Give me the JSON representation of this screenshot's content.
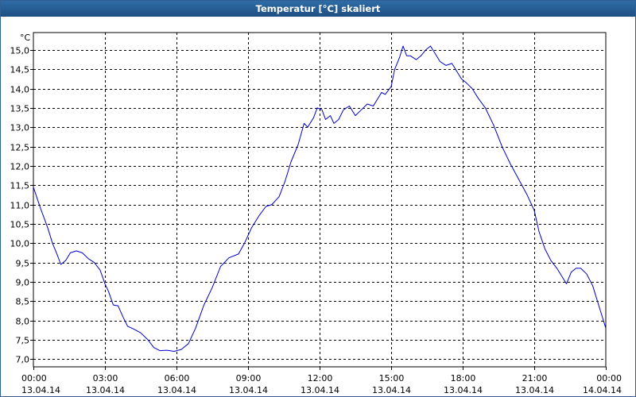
{
  "window": {
    "title": "Temperatur [°C] skaliert"
  },
  "chart_data": {
    "type": "line",
    "title": "Temperatur [°C] skaliert",
    "unit_label": "°C",
    "xlabel": "",
    "ylabel": "",
    "ylim": [
      6.8,
      15.45
    ],
    "xlim": [
      0,
      24
    ],
    "grid": true,
    "colors": {
      "line": "#0000cc",
      "grid": "#000000",
      "title_bar": "#245b8f"
    },
    "y_ticks": [
      "7,0",
      "7,5",
      "8,0",
      "8,5",
      "9,0",
      "9,5",
      "10,0",
      "10,5",
      "11,0",
      "11,5",
      "12,0",
      "12,5",
      "13,0",
      "13,5",
      "14,0",
      "14,5",
      "15,0"
    ],
    "x_ticks": [
      {
        "time": "00:00",
        "date": "13.04.14"
      },
      {
        "time": "03:00",
        "date": "13.04.14"
      },
      {
        "time": "06:00",
        "date": "13.04.14"
      },
      {
        "time": "09:00",
        "date": "13.04.14"
      },
      {
        "time": "12:00",
        "date": "13.04.14"
      },
      {
        "time": "15:00",
        "date": "13.04.14"
      },
      {
        "time": "18:00",
        "date": "13.04.14"
      },
      {
        "time": "21:00",
        "date": "13.04.14"
      },
      {
        "time": "00:00",
        "date": "14.04.14"
      }
    ],
    "series": [
      {
        "values": [
          [
            0.0,
            11.45
          ],
          [
            0.3,
            10.9
          ],
          [
            0.6,
            10.4
          ],
          [
            0.8,
            10.0
          ],
          [
            1.0,
            9.7
          ],
          [
            1.15,
            9.45
          ],
          [
            1.35,
            9.55
          ],
          [
            1.55,
            9.75
          ],
          [
            1.8,
            9.8
          ],
          [
            2.05,
            9.75
          ],
          [
            2.3,
            9.6
          ],
          [
            2.55,
            9.5
          ],
          [
            2.8,
            9.3
          ],
          [
            3.0,
            8.95
          ],
          [
            3.15,
            8.75
          ],
          [
            3.35,
            8.4
          ],
          [
            3.55,
            8.38
          ],
          [
            3.75,
            8.1
          ],
          [
            3.95,
            7.85
          ],
          [
            4.2,
            7.78
          ],
          [
            4.5,
            7.68
          ],
          [
            4.8,
            7.5
          ],
          [
            5.05,
            7.3
          ],
          [
            5.3,
            7.22
          ],
          [
            5.6,
            7.23
          ],
          [
            5.9,
            7.2
          ],
          [
            6.2,
            7.25
          ],
          [
            6.5,
            7.4
          ],
          [
            6.8,
            7.8
          ],
          [
            7.15,
            8.4
          ],
          [
            7.5,
            8.85
          ],
          [
            7.85,
            9.4
          ],
          [
            8.2,
            9.62
          ],
          [
            8.6,
            9.72
          ],
          [
            8.85,
            10.0
          ],
          [
            9.15,
            10.4
          ],
          [
            9.45,
            10.7
          ],
          [
            9.75,
            10.95
          ],
          [
            10.0,
            11.0
          ],
          [
            10.3,
            11.2
          ],
          [
            10.55,
            11.6
          ],
          [
            10.8,
            12.1
          ],
          [
            11.1,
            12.55
          ],
          [
            11.35,
            13.1
          ],
          [
            11.5,
            13.0
          ],
          [
            11.75,
            13.25
          ],
          [
            11.9,
            13.5
          ],
          [
            12.1,
            13.45
          ],
          [
            12.25,
            13.2
          ],
          [
            12.45,
            13.3
          ],
          [
            12.6,
            13.1
          ],
          [
            12.8,
            13.2
          ],
          [
            13.0,
            13.45
          ],
          [
            13.25,
            13.55
          ],
          [
            13.5,
            13.3
          ],
          [
            13.75,
            13.45
          ],
          [
            14.0,
            13.6
          ],
          [
            14.25,
            13.55
          ],
          [
            14.45,
            13.75
          ],
          [
            14.6,
            13.9
          ],
          [
            14.75,
            13.85
          ],
          [
            15.0,
            14.05
          ],
          [
            15.15,
            14.5
          ],
          [
            15.35,
            14.8
          ],
          [
            15.5,
            15.1
          ],
          [
            15.65,
            14.85
          ],
          [
            15.8,
            14.85
          ],
          [
            16.05,
            14.75
          ],
          [
            16.25,
            14.85
          ],
          [
            16.45,
            15.0
          ],
          [
            16.65,
            15.1
          ],
          [
            16.85,
            14.9
          ],
          [
            17.05,
            14.7
          ],
          [
            17.3,
            14.6
          ],
          [
            17.55,
            14.65
          ],
          [
            17.75,
            14.45
          ],
          [
            17.95,
            14.25
          ],
          [
            18.15,
            14.15
          ],
          [
            18.4,
            14.0
          ],
          [
            18.65,
            13.75
          ],
          [
            18.95,
            13.5
          ],
          [
            19.3,
            13.05
          ],
          [
            19.65,
            12.5
          ],
          [
            20.0,
            12.05
          ],
          [
            20.35,
            11.65
          ],
          [
            20.7,
            11.25
          ],
          [
            21.0,
            10.85
          ],
          [
            21.2,
            10.3
          ],
          [
            21.45,
            9.85
          ],
          [
            21.7,
            9.55
          ],
          [
            21.95,
            9.35
          ],
          [
            22.15,
            9.15
          ],
          [
            22.35,
            8.95
          ],
          [
            22.55,
            9.25
          ],
          [
            22.75,
            9.35
          ],
          [
            22.95,
            9.35
          ],
          [
            23.2,
            9.2
          ],
          [
            23.45,
            8.9
          ],
          [
            23.7,
            8.4
          ],
          [
            23.9,
            8.0
          ],
          [
            24.0,
            7.8
          ]
        ]
      }
    ]
  }
}
